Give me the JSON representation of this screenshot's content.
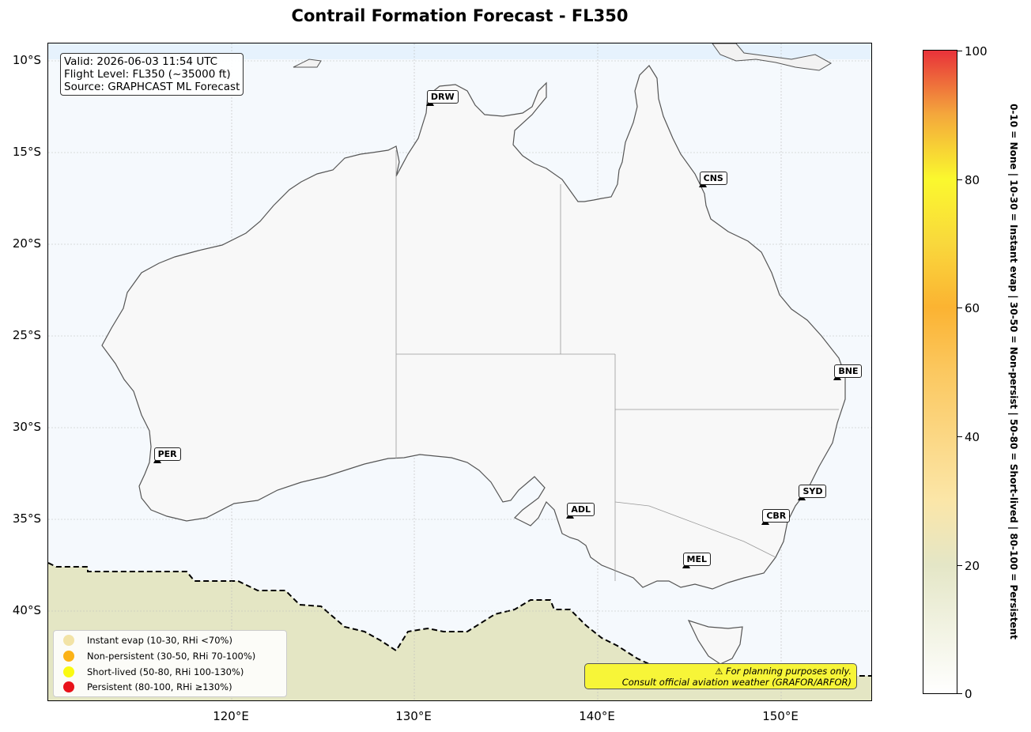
{
  "title": "Contrail Formation Forecast - FL350",
  "info": {
    "valid": "Valid: 2026-06-03 11:54 UTC",
    "flight_level": "Flight Level: FL350 (~35000 ft)",
    "source": "Source: GRAPHCAST ML Forecast"
  },
  "axes": {
    "lat_labels": [
      "10°S",
      "15°S",
      "20°S",
      "25°S",
      "30°S",
      "35°S",
      "40°S"
    ],
    "lon_labels": [
      "120°E",
      "130°E",
      "140°E",
      "150°E"
    ]
  },
  "airports": [
    {
      "code": "DRW",
      "lon": 130.87,
      "lat": -12.41
    },
    {
      "code": "CNS",
      "lon": 145.75,
      "lat": -16.88
    },
    {
      "code": "BNE",
      "lon": 153.12,
      "lat": -27.38
    },
    {
      "code": "PER",
      "lon": 115.97,
      "lat": -31.94
    },
    {
      "code": "ADL",
      "lon": 138.53,
      "lat": -34.95
    },
    {
      "code": "SYD",
      "lon": 151.18,
      "lat": -33.95
    },
    {
      "code": "CBR",
      "lon": 149.19,
      "lat": -35.31
    },
    {
      "code": "MEL",
      "lon": 144.84,
      "lat": -37.67
    }
  ],
  "legend": [
    {
      "label": "Instant evap (10-30, RHi <70%)",
      "color": "#f2e3a6"
    },
    {
      "label": "Non-persistent (30-50, RHi 70-100%)",
      "color": "#fbb216"
    },
    {
      "label": "Short-lived (50-80, RHi 100-130%)",
      "color": "#fafa12"
    },
    {
      "label": "Persistent (80-100, RHi ≥130%)",
      "color": "#e8121a"
    }
  ],
  "warning": {
    "line1": "⚠ For planning purposes only.",
    "line2": "Consult official aviation weather (GRAFOR/ARFOR)"
  },
  "colorbar": {
    "ticks": [
      "0",
      "20",
      "40",
      "60",
      "80",
      "100"
    ],
    "caption": "0-10 = None  |  10-30 = Instant evap  |  30-50 = Non-persist  |  50-80 = Short-lived  |  80-100 = Persistent"
  }
}
